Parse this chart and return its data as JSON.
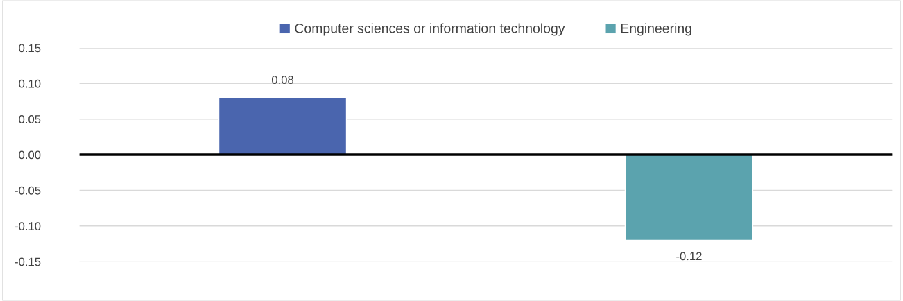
{
  "chart_data": {
    "type": "bar",
    "categories": [
      null
    ],
    "series": [
      {
        "name": "Computer sciences or information technology",
        "color": "#4a65ae",
        "values": [
          0.08
        ]
      },
      {
        "name": "Engineering",
        "color": "#5ba3ae",
        "values": [
          -0.12
        ]
      }
    ],
    "ylim": [
      -0.15,
      0.15
    ],
    "yticks": [
      {
        "value": 0.15,
        "label": "0.15"
      },
      {
        "value": 0.1,
        "label": "0.10"
      },
      {
        "value": 0.05,
        "label": "0.05"
      },
      {
        "value": 0,
        "label": "0.00"
      },
      {
        "value": -0.05,
        "label": "-0.05"
      },
      {
        "value": -0.1,
        "label": "-0.10"
      },
      {
        "value": -0.15,
        "label": "-0.15"
      }
    ],
    "ref_lines": [
      {
        "axis": "y",
        "value": 0,
        "color": "#000000"
      }
    ],
    "data_labels": true,
    "grid": "y",
    "legend": "top",
    "tick_labels": "y"
  }
}
